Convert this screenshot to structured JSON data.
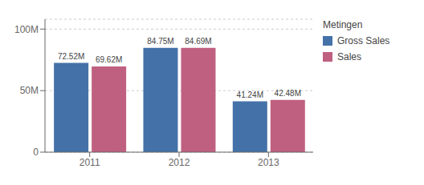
{
  "chart_data": {
    "type": "bar",
    "categories": [
      "2011",
      "2012",
      "2013"
    ],
    "series": [
      {
        "name": "Gross Sales",
        "color": "#4472a8",
        "values": [
          72.52,
          84.75,
          41.24
        ],
        "value_labels": [
          "72.52M",
          "84.75M",
          "41.24M"
        ]
      },
      {
        "name": "Sales",
        "color": "#c06080",
        "values": [
          69.62,
          84.69,
          42.48
        ],
        "value_labels": [
          "69.62M",
          "84.69M",
          "42.48M"
        ]
      }
    ],
    "ylim": [
      0,
      108
    ],
    "yticks": [
      0,
      {
        "value": 50,
        "label": "50M"
      },
      {
        "value": 100,
        "label": "100M"
      }
    ],
    "grid": true,
    "data_labels": true,
    "legend": "right",
    "legend_title": "Metingen"
  }
}
